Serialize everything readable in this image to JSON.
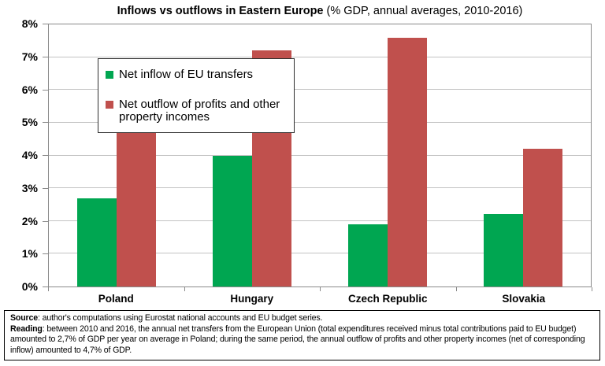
{
  "title": {
    "main": "Inflows vs outflows in Eastern Europe",
    "sub": " (% GDP, annual averages, 2010-2016)"
  },
  "chart_data": {
    "type": "bar",
    "categories": [
      "Poland",
      "Hungary",
      "Czech Republic",
      "Slovakia"
    ],
    "series": [
      {
        "name": "Net inflow of EU transfers",
        "short": "inflow",
        "color": "#00A651",
        "values": [
          2.7,
          4.0,
          1.9,
          2.2
        ]
      },
      {
        "name": "Net outflow of profits and other property incomes",
        "short": "outflow",
        "color": "#C0504D",
        "values": [
          4.7,
          7.2,
          7.6,
          4.2
        ]
      }
    ],
    "xlabel": "",
    "ylabel": "",
    "ylim": [
      0,
      8
    ],
    "ytick_step": 1,
    "ytick_labels": [
      "0%",
      "1%",
      "2%",
      "3%",
      "4%",
      "5%",
      "6%",
      "7%",
      "8%"
    ],
    "grid": true,
    "gridline_color": "#c3c3c3",
    "axis_color": "#8a8a8a",
    "legend_position": "top-left"
  },
  "footer": {
    "source_label": "Source",
    "source_text": ": author's computations using Eurostat national accounts and EU budget series.",
    "reading_label": "Reading",
    "reading_text": ": between 2010 and 2016, the annual net transfers from the European Union (total expenditures received minus total contributions paid to EU budget) amounted to 2,7% of GDP per year on average in Poland; during the same period, the annual outflow of profits and other property incomes (net of corresponding inflow) amounted to 4,7% of GDP."
  }
}
